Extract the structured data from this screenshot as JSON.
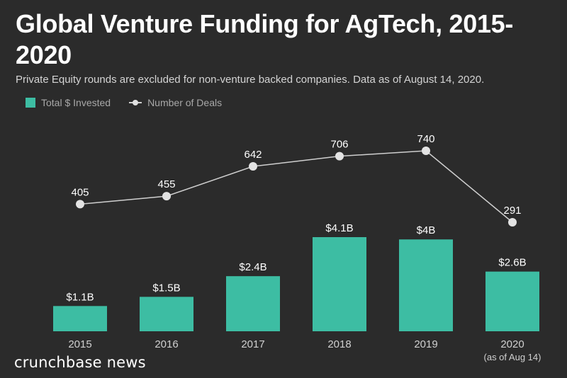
{
  "title": "Global Venture Funding for AgTech, 2015-2020",
  "subtitle": "Private Equity rounds are excluded for non-venture backed companies. Data as of August 14, 2020.",
  "legend": {
    "bars_label": "Total $ Invested",
    "line_label": "Number of Deals"
  },
  "brand": "crunchbase news",
  "colors": {
    "bar": "#3dbda3",
    "line": "#cfcfcf",
    "point": "#e3e3e3",
    "background": "#2b2b2b"
  },
  "chart_data": {
    "type": "bar",
    "categories": [
      "2015",
      "2016",
      "2017",
      "2018",
      "2019",
      "2020"
    ],
    "category_sublabels": [
      "",
      "",
      "",
      "",
      "",
      "(as of Aug 14)"
    ],
    "series": [
      {
        "name": "Total $ Invested",
        "type": "bar",
        "unit": "$B",
        "values": [
          1.1,
          1.5,
          2.4,
          4.1,
          4.0,
          2.6
        ],
        "labels": [
          "$1.1B",
          "$1.5B",
          "$2.4B",
          "$4.1B",
          "$4B",
          "$2.6B"
        ]
      },
      {
        "name": "Number of Deals",
        "type": "line",
        "values": [
          405,
          455,
          642,
          706,
          740,
          291
        ],
        "labels": [
          "405",
          "455",
          "642",
          "706",
          "740",
          "291"
        ]
      }
    ],
    "bar_ylim": [
      0,
      4.1
    ],
    "line_ylim": [
      291,
      740
    ],
    "grid": false,
    "legend_position": "top-left"
  }
}
